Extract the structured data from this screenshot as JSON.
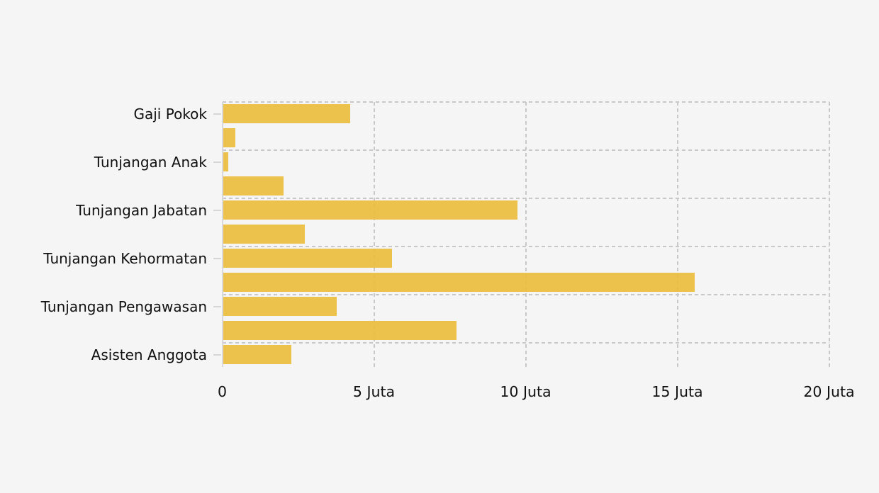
{
  "chart_data": {
    "type": "bar",
    "orientation": "horizontal",
    "title": "",
    "xlabel": "",
    "ylabel": "",
    "unit": "Juta",
    "xlim_juta": [
      0,
      20
    ],
    "x_ticks": [
      {
        "value_juta": 0,
        "label": "0"
      },
      {
        "value_juta": 5,
        "label": "5 Juta"
      },
      {
        "value_juta": 10,
        "label": "10 Juta"
      },
      {
        "value_juta": 15,
        "label": "15 Juta"
      },
      {
        "value_juta": 20,
        "label": "20 Juta"
      }
    ],
    "bars": [
      {
        "y_label": "Gaji Pokok",
        "value_juta": 4.2
      },
      {
        "y_label": "",
        "value_juta": 0.42
      },
      {
        "y_label": "Tunjangan Anak",
        "value_juta": 0.17
      },
      {
        "y_label": "",
        "value_juta": 2.0
      },
      {
        "y_label": "Tunjangan Jabatan",
        "value_juta": 9.7
      },
      {
        "y_label": "",
        "value_juta": 2.7
      },
      {
        "y_label": "Tunjangan Kehormatan",
        "value_juta": 5.58
      },
      {
        "y_label": "",
        "value_juta": 15.55
      },
      {
        "y_label": "Tunjangan Pengawasan",
        "value_juta": 3.75
      },
      {
        "y_label": "",
        "value_juta": 7.7
      },
      {
        "y_label": "Asisten Anggota",
        "value_juta": 2.25
      }
    ],
    "grid": {
      "style": "dashed",
      "horizontal": "one dashed line above every labeled bar (every 2 bars)",
      "vertical_at_juta": [
        5,
        10,
        15,
        20
      ]
    },
    "legend": "none",
    "colors": {
      "bar": "#EEC44E",
      "grid": "#C8C8C8",
      "axis_spine": "#D9D9D9",
      "text": "#111111",
      "background": "#F5F5F5"
    }
  }
}
